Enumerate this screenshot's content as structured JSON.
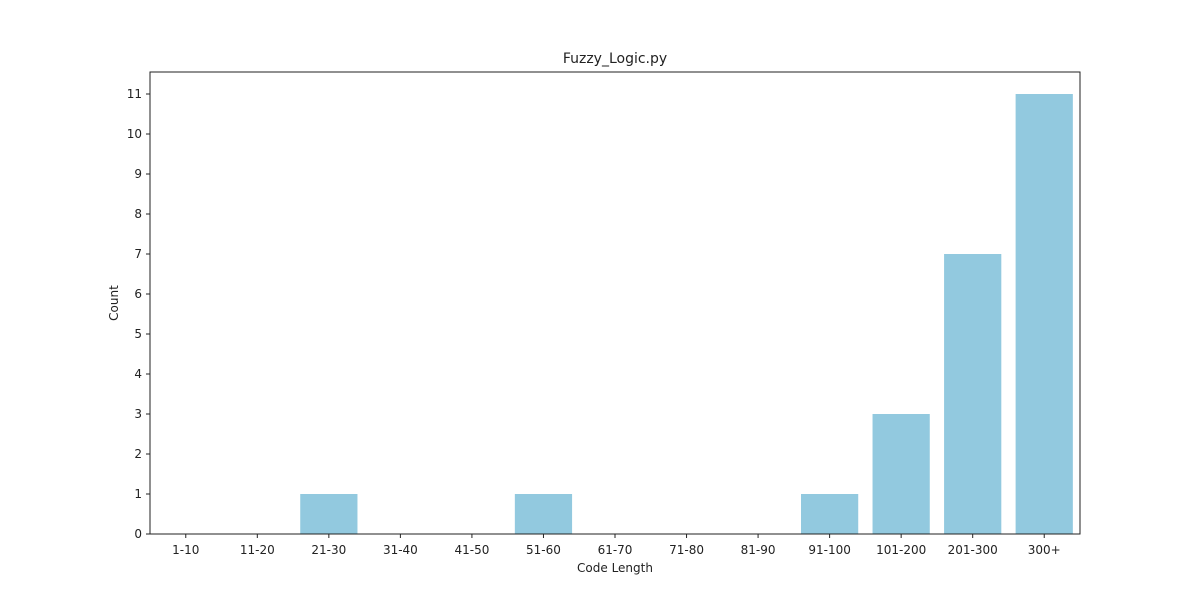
{
  "chart_data": {
    "type": "bar",
    "title": "Fuzzy_Logic.py",
    "xlabel": "Code Length",
    "ylabel": "Count",
    "categories": [
      "1-10",
      "11-20",
      "21-30",
      "31-40",
      "41-50",
      "51-60",
      "61-70",
      "71-80",
      "81-90",
      "91-100",
      "101-200",
      "201-300",
      "300+"
    ],
    "values": [
      0,
      0,
      1,
      0,
      0,
      1,
      0,
      0,
      0,
      1,
      3,
      7,
      11
    ],
    "ylim": [
      0,
      11.55
    ],
    "yticks": [
      0,
      1,
      2,
      3,
      4,
      5,
      6,
      7,
      8,
      9,
      10,
      11
    ],
    "grid": false,
    "bar_color": "#92c9df"
  }
}
